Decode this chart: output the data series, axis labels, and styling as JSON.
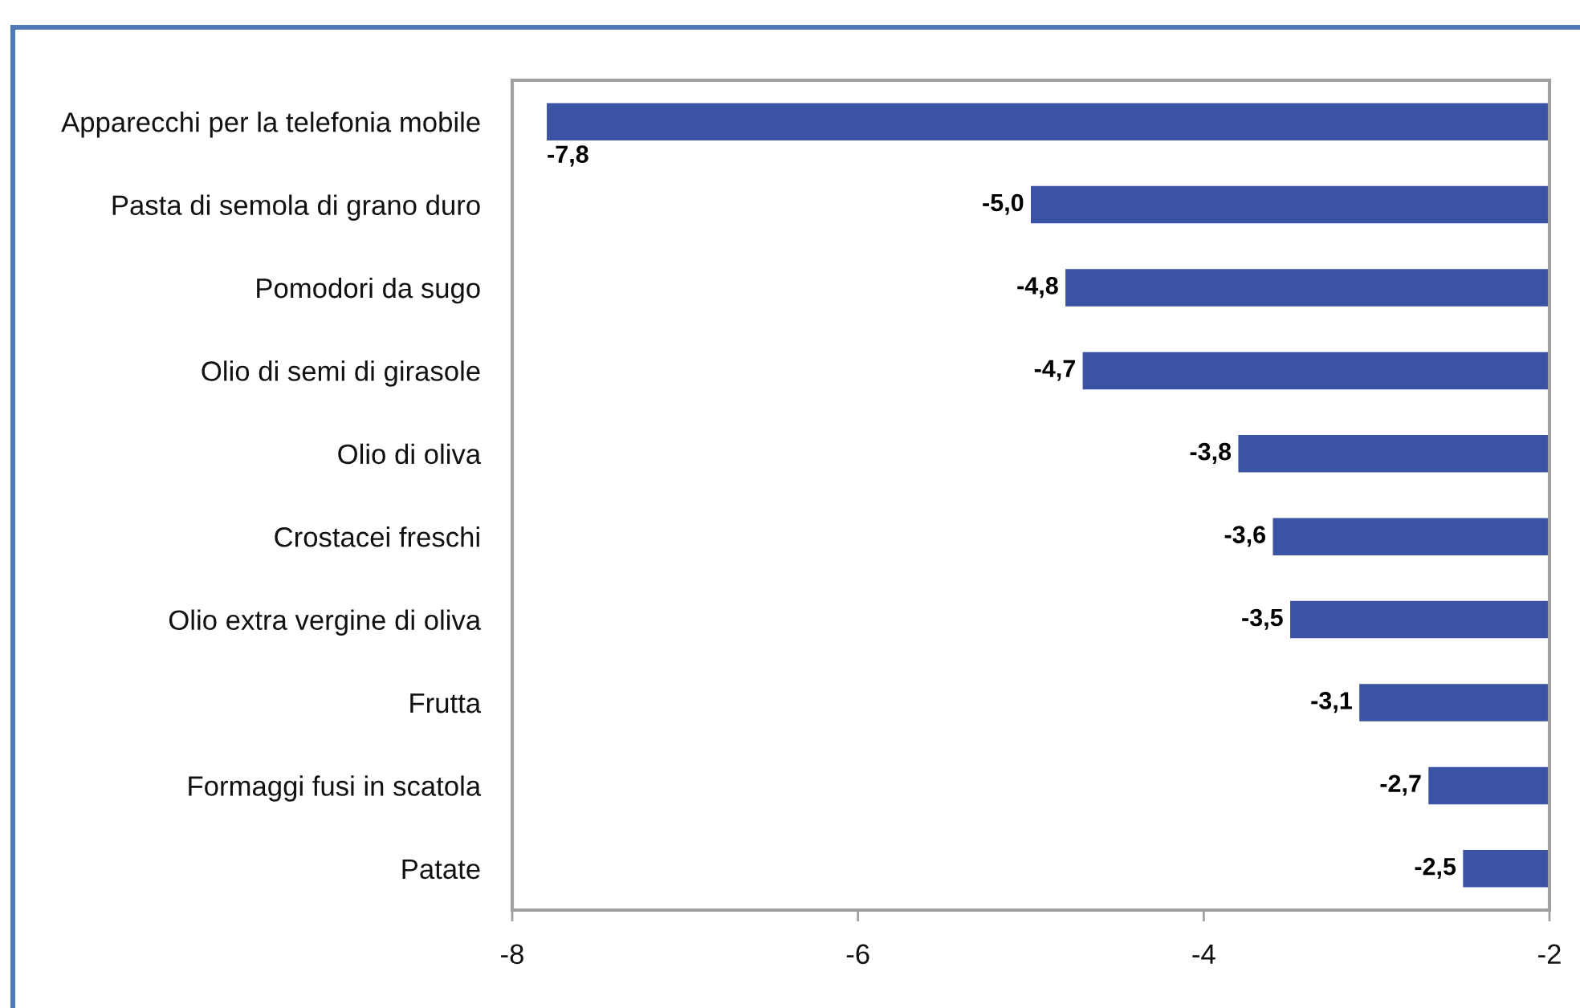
{
  "chart_data": {
    "type": "bar",
    "orientation": "horizontal",
    "categories": [
      "Apparecchi per la telefonia mobile",
      "Pasta di semola di grano duro",
      "Pomodori da sugo",
      "Olio di semi di girasole",
      "Olio di oliva",
      "Crostacei freschi",
      "Olio extra vergine di oliva",
      "Frutta",
      "Formaggi fusi in scatola",
      "Patate"
    ],
    "values": [
      -7.8,
      -5.0,
      -4.8,
      -4.7,
      -3.8,
      -3.6,
      -3.5,
      -3.1,
      -2.7,
      -2.5
    ],
    "value_labels": [
      "-7,8",
      "-5,0",
      "-4,8",
      "-4,7",
      "-3,8",
      "-3,6",
      "-3,5",
      "-3,1",
      "-2,7",
      "-2,5"
    ],
    "color": "#3a53a4",
    "xlim": [
      -8,
      -2
    ],
    "xticks": [
      -8,
      -6,
      -4,
      -2
    ]
  }
}
